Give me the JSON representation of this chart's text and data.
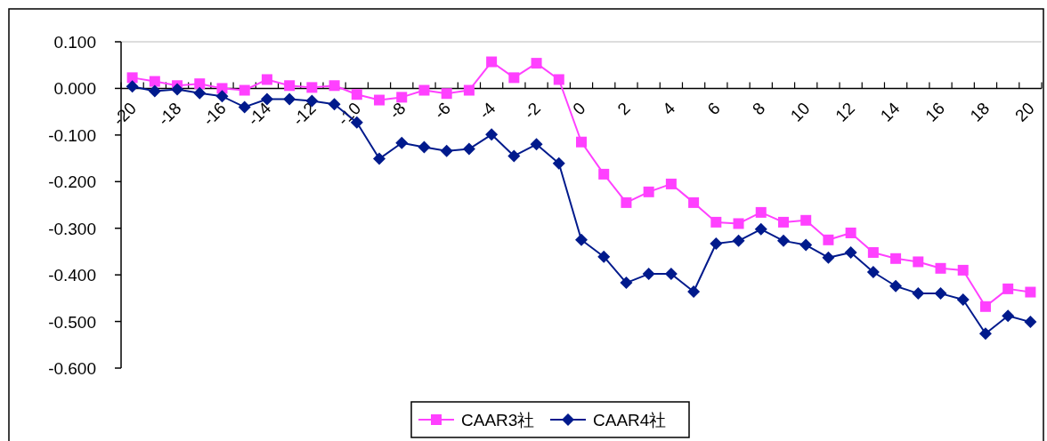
{
  "chart_data": {
    "type": "line",
    "categories": [
      "-20",
      null,
      "-18",
      null,
      "-16",
      null,
      "-14",
      null,
      "-12",
      null,
      "-10",
      null,
      "-8",
      null,
      "-6",
      null,
      "-4",
      null,
      "-2",
      null,
      "0",
      null,
      "2",
      null,
      "4",
      null,
      "6",
      null,
      "8",
      null,
      "10",
      null,
      "12",
      null,
      "14",
      null,
      "16",
      null,
      "18",
      null,
      "20"
    ],
    "series": [
      {
        "name": "CAAR3社",
        "color": "#ff40ff",
        "marker": "square",
        "values": [
          0.023,
          0.015,
          0.006,
          0.01,
          0.0,
          -0.004,
          0.019,
          0.006,
          0.002,
          0.006,
          -0.013,
          -0.025,
          -0.019,
          -0.004,
          -0.011,
          -0.004,
          0.057,
          0.023,
          0.054,
          0.019,
          -0.115,
          -0.184,
          -0.245,
          -0.222,
          -0.205,
          -0.245,
          -0.287,
          -0.29,
          -0.266,
          -0.287,
          -0.283,
          -0.325,
          -0.31,
          -0.352,
          -0.365,
          -0.372,
          -0.386,
          -0.39,
          -0.468,
          -0.43,
          -0.437
        ]
      },
      {
        "name": "CAAR4社",
        "color": "#001a8c",
        "marker": "diamond",
        "values": [
          0.004,
          -0.006,
          -0.002,
          -0.01,
          -0.017,
          -0.04,
          -0.023,
          -0.023,
          -0.027,
          -0.034,
          -0.073,
          -0.151,
          -0.117,
          -0.126,
          -0.134,
          -0.13,
          -0.099,
          -0.145,
          -0.12,
          -0.161,
          -0.325,
          -0.361,
          -0.417,
          -0.398,
          -0.398,
          -0.436,
          -0.333,
          -0.327,
          -0.302,
          -0.327,
          -0.336,
          -0.363,
          -0.352,
          -0.394,
          -0.424,
          -0.44,
          -0.44,
          -0.453,
          -0.526,
          -0.488,
          -0.501
        ]
      }
    ],
    "ylim": [
      -0.6,
      0.1
    ],
    "yticks": [
      {
        "value": 0.1,
        "label": "0.100"
      },
      {
        "value": 0.0,
        "label": "0.000"
      },
      {
        "value": -0.1,
        "label": "-0.100"
      },
      {
        "value": -0.2,
        "label": "-0.200"
      },
      {
        "value": -0.3,
        "label": "-0.300"
      },
      {
        "value": -0.4,
        "label": "-0.400"
      },
      {
        "value": -0.5,
        "label": "-0.500"
      },
      {
        "value": -0.6,
        "label": "-0.600"
      }
    ],
    "grid": false,
    "legend": "bottom",
    "line_style": "solid"
  }
}
